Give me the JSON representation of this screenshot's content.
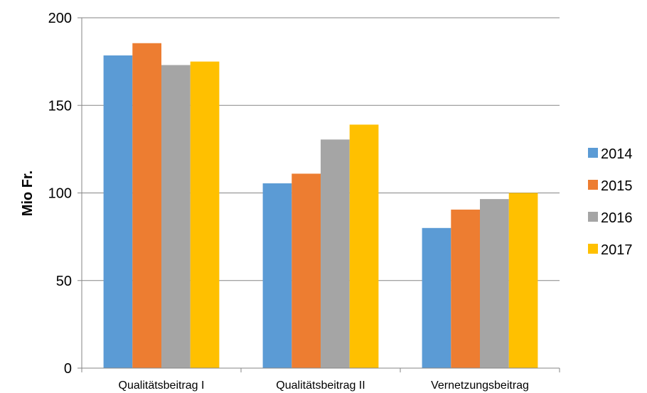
{
  "chart_data": {
    "type": "bar",
    "title": "",
    "xlabel": "",
    "ylabel": "Mio Fr.",
    "ylim": [
      0,
      200
    ],
    "yticks": [
      0,
      50,
      100,
      150,
      200
    ],
    "grid": true,
    "legend_position": "right",
    "categories": [
      "Qualitätsbeitrag I",
      "Qualitätsbeitrag II",
      "Vernetzungsbeitrag"
    ],
    "series": [
      {
        "name": "2014",
        "color": "#5b9bd5",
        "values": [
          178.5,
          105.5,
          80
        ]
      },
      {
        "name": "2015",
        "color": "#ed7d31",
        "values": [
          185.5,
          111,
          90.5
        ]
      },
      {
        "name": "2016",
        "color": "#a5a5a5",
        "values": [
          173,
          130.5,
          96.5
        ]
      },
      {
        "name": "2017",
        "color": "#ffc000",
        "values": [
          175,
          139,
          100
        ]
      }
    ]
  }
}
